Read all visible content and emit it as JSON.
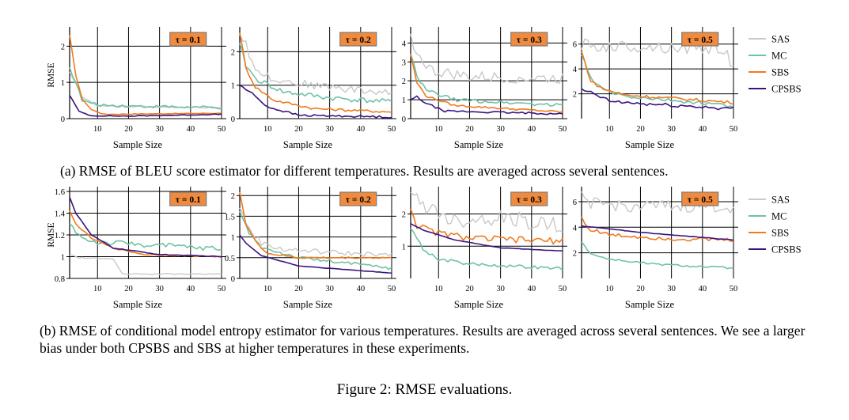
{
  "figure_caption": "Figure 2: RMSE evaluations.",
  "caption_a": {
    "prefix": "(a) RMSE of ",
    "metric": "BLEU",
    "suffix": " score estimator for different temperatures. Results are averaged across several sentences."
  },
  "caption_b": "(b) RMSE of conditional model entropy estimator for various temperatures. Results are averaged across several sentences. We see a larger bias under both CPSBS and SBS at higher temperatures in these experiments.",
  "legend": [
    "SAS",
    "MC",
    "SBS",
    "CPSBS"
  ],
  "colors": {
    "SAS": "#c9c9c9",
    "MC": "#6fc2a7",
    "SBS": "#f07a1e",
    "CPSBS": "#3b1380",
    "tag_fill": "#f08a3e"
  },
  "chart_data": [
    {
      "type": "line",
      "row": "a",
      "tau_label": "τ = 0.1",
      "ylabel": "RMSE",
      "xlabel": "Sample Size",
      "ylim": [
        0,
        2.4
      ],
      "yticks": [
        0,
        1,
        2
      ],
      "xticks": [
        10,
        20,
        30,
        40,
        50
      ],
      "xlim": [
        1,
        50
      ],
      "series": [
        {
          "name": "SAS",
          "anchors": [
            [
              1,
              1.3
            ],
            [
              5,
              0.6
            ],
            [
              10,
              0.35
            ],
            [
              50,
              0.3
            ]
          ],
          "noise": 0.02
        },
        {
          "name": "MC",
          "anchors": [
            [
              1,
              1.4
            ],
            [
              3,
              1.0
            ],
            [
              5,
              0.5
            ],
            [
              10,
              0.38
            ],
            [
              20,
              0.35
            ],
            [
              50,
              0.3
            ]
          ],
          "noise": 0.04
        },
        {
          "name": "SBS",
          "anchors": [
            [
              1,
              2.3
            ],
            [
              3,
              1.2
            ],
            [
              5,
              0.55
            ],
            [
              8,
              0.25
            ],
            [
              12,
              0.12
            ],
            [
              50,
              0.15
            ]
          ],
          "noise": 0.01
        },
        {
          "name": "CPSBS",
          "anchors": [
            [
              1,
              0.65
            ],
            [
              4,
              0.2
            ],
            [
              8,
              0.08
            ],
            [
              20,
              0.07
            ],
            [
              50,
              0.12
            ]
          ],
          "noise": 0.01
        }
      ]
    },
    {
      "type": "line",
      "row": "a",
      "tau_label": "τ = 0.2",
      "ylabel": "",
      "xlabel": "Sample Size",
      "ylim": [
        0,
        2.6
      ],
      "yticks": [
        0,
        1,
        2
      ],
      "xticks": [
        10,
        20,
        30,
        40,
        50
      ],
      "xlim": [
        1,
        50
      ],
      "series": [
        {
          "name": "SAS",
          "anchors": [
            [
              1,
              2.5
            ],
            [
              3,
              2.3
            ],
            [
              5,
              1.6
            ],
            [
              10,
              1.25
            ],
            [
              20,
              1.05
            ],
            [
              50,
              0.75
            ]
          ],
          "noise": 0.12
        },
        {
          "name": "MC",
          "anchors": [
            [
              1,
              2.2
            ],
            [
              3,
              1.6
            ],
            [
              6,
              1.2
            ],
            [
              15,
              0.8
            ],
            [
              30,
              0.62
            ],
            [
              50,
              0.5
            ]
          ],
          "noise": 0.08
        },
        {
          "name": "SBS",
          "anchors": [
            [
              1,
              2.6
            ],
            [
              3,
              1.5
            ],
            [
              6,
              0.95
            ],
            [
              12,
              0.55
            ],
            [
              25,
              0.3
            ],
            [
              50,
              0.2
            ]
          ],
          "noise": 0.04
        },
        {
          "name": "CPSBS",
          "anchors": [
            [
              1,
              1.0
            ],
            [
              5,
              0.75
            ],
            [
              10,
              0.35
            ],
            [
              20,
              0.1
            ],
            [
              50,
              0.05
            ]
          ],
          "noise": 0.03
        }
      ]
    },
    {
      "type": "line",
      "row": "a",
      "tau_label": "τ = 0.3",
      "ylabel": "",
      "xlabel": "Sample Size",
      "ylim": [
        0,
        4.6
      ],
      "yticks": [
        0,
        1,
        2,
        3,
        4
      ],
      "xticks": [
        10,
        20,
        30,
        40,
        50
      ],
      "xlim": [
        1,
        50
      ],
      "series": [
        {
          "name": "SAS",
          "anchors": [
            [
              1,
              4.3
            ],
            [
              4,
              3.2
            ],
            [
              8,
              2.5
            ],
            [
              20,
              2.2
            ],
            [
              50,
              2.1
            ]
          ],
          "noise": 0.3
        },
        {
          "name": "MC",
          "anchors": [
            [
              1,
              3.5
            ],
            [
              3,
              2.2
            ],
            [
              6,
              1.5
            ],
            [
              15,
              1.0
            ],
            [
              50,
              0.7
            ]
          ],
          "noise": 0.1
        },
        {
          "name": "SBS",
          "anchors": [
            [
              1,
              3.4
            ],
            [
              3,
              1.9
            ],
            [
              6,
              1.2
            ],
            [
              15,
              0.7
            ],
            [
              50,
              0.35
            ]
          ],
          "noise": 0.05
        },
        {
          "name": "CPSBS",
          "anchors": [
            [
              1,
              1.0
            ],
            [
              3,
              1.15
            ],
            [
              6,
              0.8
            ],
            [
              12,
              0.4
            ],
            [
              50,
              0.25
            ]
          ],
          "noise": 0.05
        }
      ]
    },
    {
      "type": "line",
      "row": "a",
      "tau_label": "τ = 0.5",
      "ylabel": "",
      "xlabel": "Sample Size",
      "ylim": [
        0,
        7.0
      ],
      "yticks": [
        2,
        4,
        6
      ],
      "xticks": [
        10,
        20,
        30,
        40,
        50
      ],
      "xlim": [
        1,
        50
      ],
      "series": [
        {
          "name": "SAS",
          "anchors": [
            [
              1,
              6.0
            ],
            [
              5,
              5.8
            ],
            [
              20,
              5.8
            ],
            [
              48,
              5.6
            ],
            [
              49,
              3.8
            ],
            [
              50,
              4.5
            ]
          ],
          "noise": 0.5
        },
        {
          "name": "MC",
          "anchors": [
            [
              1,
              5.2
            ],
            [
              4,
              3.2
            ],
            [
              8,
              2.3
            ],
            [
              15,
              1.8
            ],
            [
              50,
              1.0
            ]
          ],
          "noise": 0.15
        },
        {
          "name": "SBS",
          "anchors": [
            [
              1,
              5.4
            ],
            [
              4,
              3.0
            ],
            [
              8,
              2.4
            ],
            [
              15,
              1.9
            ],
            [
              50,
              1.3
            ]
          ],
          "noise": 0.12
        },
        {
          "name": "CPSBS",
          "anchors": [
            [
              1,
              2.3
            ],
            [
              5,
              2.0
            ],
            [
              10,
              1.4
            ],
            [
              20,
              1.2
            ],
            [
              50,
              0.8
            ]
          ],
          "noise": 0.15
        }
      ]
    },
    {
      "type": "line",
      "row": "b",
      "tau_label": "τ = 0.1",
      "ylabel": "RMSE",
      "xlabel": "Sample Size",
      "ylim": [
        0.8,
        1.6
      ],
      "yticks": [
        0.8,
        1,
        1.2,
        1.4,
        1.6
      ],
      "xticks": [
        10,
        20,
        30,
        40,
        50
      ],
      "xlim": [
        1,
        50
      ],
      "series": [
        {
          "name": "SAS",
          "anchors": [
            [
              1,
              1.02
            ],
            [
              4,
              0.99
            ],
            [
              15,
              0.98
            ],
            [
              18,
              0.84
            ],
            [
              50,
              0.84
            ]
          ],
          "noise": 0.005
        },
        {
          "name": "MC",
          "anchors": [
            [
              1,
              1.3
            ],
            [
              5,
              1.17
            ],
            [
              10,
              1.13
            ],
            [
              20,
              1.12
            ],
            [
              50,
              1.07
            ]
          ],
          "noise": 0.025
        },
        {
          "name": "SBS",
          "anchors": [
            [
              1,
              1.42
            ],
            [
              3,
              1.3
            ],
            [
              8,
              1.17
            ],
            [
              15,
              1.08
            ],
            [
              25,
              1.02
            ],
            [
              50,
              1.0
            ]
          ],
          "noise": 0.005
        },
        {
          "name": "CPSBS",
          "anchors": [
            [
              1,
              1.55
            ],
            [
              3,
              1.4
            ],
            [
              8,
              1.2
            ],
            [
              15,
              1.08
            ],
            [
              30,
              1.02
            ],
            [
              50,
              1.0
            ]
          ],
          "noise": 0.003
        }
      ]
    },
    {
      "type": "line",
      "row": "b",
      "tau_label": "τ = 0.2",
      "ylabel": "",
      "xlabel": "Sample Size",
      "ylim": [
        0,
        2.1
      ],
      "yticks": [
        0,
        0.5,
        1,
        1.5,
        2
      ],
      "xticks": [
        10,
        20,
        30,
        40,
        50
      ],
      "xlim": [
        1,
        50
      ],
      "series": [
        {
          "name": "SAS",
          "anchors": [
            [
              1,
              1.7
            ],
            [
              4,
              1.2
            ],
            [
              8,
              0.85
            ],
            [
              15,
              0.7
            ],
            [
              50,
              0.55
            ]
          ],
          "noise": 0.06
        },
        {
          "name": "MC",
          "anchors": [
            [
              1,
              1.6
            ],
            [
              4,
              1.1
            ],
            [
              8,
              0.75
            ],
            [
              20,
              0.5
            ],
            [
              50,
              0.25
            ]
          ],
          "noise": 0.04
        },
        {
          "name": "SBS",
          "anchors": [
            [
              1,
              2.1
            ],
            [
              3,
              1.3
            ],
            [
              6,
              0.9
            ],
            [
              10,
              0.6
            ],
            [
              20,
              0.5
            ],
            [
              50,
              0.5
            ]
          ],
          "noise": 0.02
        },
        {
          "name": "CPSBS",
          "anchors": [
            [
              1,
              1.05
            ],
            [
              3,
              0.85
            ],
            [
              8,
              0.55
            ],
            [
              20,
              0.3
            ],
            [
              50,
              0.13
            ]
          ],
          "noise": 0.004
        }
      ]
    },
    {
      "type": "line",
      "row": "b",
      "tau_label": "τ = 0.3",
      "ylabel": "",
      "xlabel": "Sample Size",
      "ylim": [
        0,
        2.7
      ],
      "yticks": [
        1,
        2
      ],
      "xticks": [
        10,
        20,
        30,
        40,
        50
      ],
      "xlim": [
        1,
        50
      ],
      "series": [
        {
          "name": "SAS",
          "anchors": [
            [
              1,
              2.55
            ],
            [
              5,
              2.3
            ],
            [
              15,
              1.8
            ],
            [
              30,
              1.9
            ],
            [
              50,
              1.6
            ]
          ],
          "noise": 0.25
        },
        {
          "name": "MC",
          "anchors": [
            [
              1,
              1.6
            ],
            [
              5,
              0.9
            ],
            [
              10,
              0.6
            ],
            [
              20,
              0.45
            ],
            [
              50,
              0.3
            ]
          ],
          "noise": 0.05
        },
        {
          "name": "SBS",
          "anchors": [
            [
              1,
              2.2
            ],
            [
              3,
              1.65
            ],
            [
              8,
              1.45
            ],
            [
              20,
              1.25
            ],
            [
              50,
              1.15
            ]
          ],
          "noise": 0.1
        },
        {
          "name": "CPSBS",
          "anchors": [
            [
              1,
              1.7
            ],
            [
              5,
              1.5
            ],
            [
              15,
              1.2
            ],
            [
              30,
              0.95
            ],
            [
              50,
              0.85
            ]
          ],
          "noise": 0.005
        }
      ]
    },
    {
      "type": "line",
      "row": "b",
      "tau_label": "τ = 0.5",
      "ylabel": "",
      "xlabel": "Sample Size",
      "ylim": [
        0,
        6.8
      ],
      "yticks": [
        2,
        4,
        6
      ],
      "xticks": [
        10,
        20,
        30,
        40,
        50
      ],
      "xlim": [
        1,
        50
      ],
      "series": [
        {
          "name": "SAS",
          "anchors": [
            [
              1,
              6.3
            ],
            [
              5,
              5.8
            ],
            [
              20,
              5.6
            ],
            [
              50,
              5.6
            ]
          ],
          "noise": 0.5
        },
        {
          "name": "MC",
          "anchors": [
            [
              1,
              2.9
            ],
            [
              4,
              1.9
            ],
            [
              10,
              1.5
            ],
            [
              25,
              1.1
            ],
            [
              50,
              0.8
            ]
          ],
          "noise": 0.08
        },
        {
          "name": "SBS",
          "anchors": [
            [
              1,
              4.8
            ],
            [
              3,
              3.9
            ],
            [
              10,
              3.4
            ],
            [
              30,
              3.1
            ],
            [
              50,
              3.0
            ]
          ],
          "noise": 0.15
        },
        {
          "name": "CPSBS",
          "anchors": [
            [
              1,
              4.1
            ],
            [
              5,
              4.0
            ],
            [
              20,
              3.6
            ],
            [
              50,
              3.0
            ]
          ],
          "noise": 0.02
        }
      ]
    }
  ]
}
